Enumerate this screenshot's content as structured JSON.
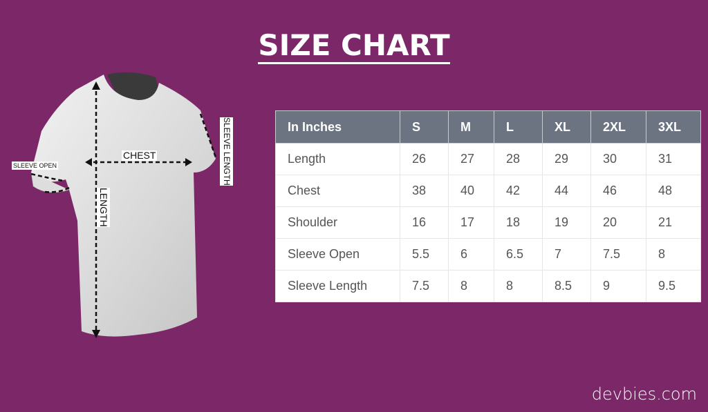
{
  "title": "SIZE CHART",
  "diagram_labels": {
    "chest": "CHEST",
    "length": "LENGTH",
    "sleeve_open": "SLEEVE OPEN",
    "sleeve_length": "SLEEVE LENGTH"
  },
  "table": {
    "headers": [
      "In Inches",
      "S",
      "M",
      "L",
      "XL",
      "2XL",
      "3XL"
    ],
    "rows": [
      [
        "Length",
        "26",
        "27",
        "28",
        "29",
        "30",
        "31"
      ],
      [
        "Chest",
        "38",
        "40",
        "42",
        "44",
        "46",
        "48"
      ],
      [
        "Shoulder",
        "16",
        "17",
        "18",
        "19",
        "20",
        "21"
      ],
      [
        "Sleeve Open",
        "5.5",
        "6",
        "6.5",
        "7",
        "7.5",
        "8"
      ],
      [
        "Sleeve Length",
        "7.5",
        "8",
        "8",
        "8.5",
        "9",
        "9.5"
      ]
    ]
  },
  "footer": "devbies.com",
  "colors": {
    "background": "#7b2768",
    "header": "#6b7480"
  }
}
